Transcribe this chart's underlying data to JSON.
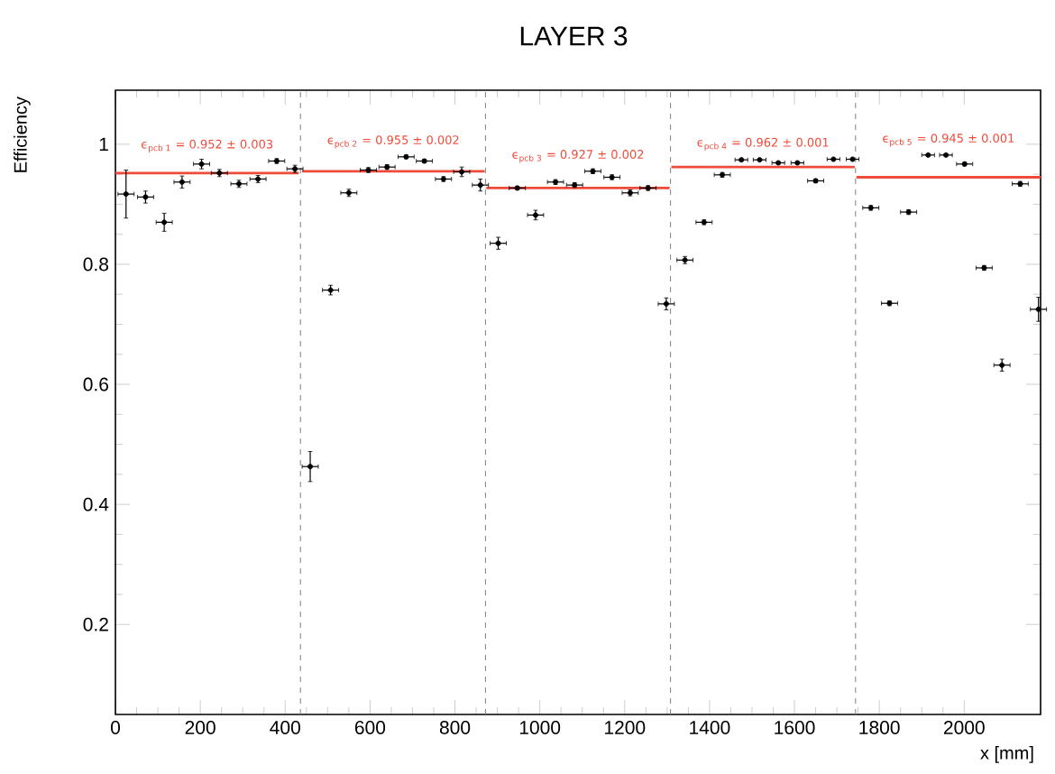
{
  "chart_data": {
    "type": "scatter",
    "title": "LAYER 3",
    "xlabel": "x [mm]",
    "ylabel": "Efficiency",
    "xlim": [
      0,
      2180
    ],
    "ylim": [
      0.05,
      1.09
    ],
    "xticks": [
      0,
      200,
      400,
      600,
      800,
      1000,
      1200,
      1400,
      1600,
      1800,
      2000
    ],
    "yticks": [
      0.2,
      0.4,
      0.6,
      0.8,
      {
        "value": 1,
        "label": "1"
      }
    ],
    "ref_lines": [
      {
        "axis": "x",
        "value": 436,
        "color": "#808080",
        "line_style": "dashed"
      },
      {
        "axis": "x",
        "value": 872,
        "color": "#808080",
        "line_style": "dashed"
      },
      {
        "axis": "x",
        "value": 1308,
        "color": "#808080",
        "line_style": "dashed"
      },
      {
        "axis": "x",
        "value": 1744,
        "color": "#808080",
        "line_style": "dashed"
      }
    ],
    "series": [
      {
        "color": "#000000",
        "marker": "circle",
        "x": [
          25,
          71,
          115,
          157,
          203,
          245,
          291,
          336,
          380,
          423,
          459,
          507,
          550,
          596,
          640,
          685,
          728,
          773,
          816,
          860,
          902,
          947,
          990,
          1037,
          1082,
          1125,
          1170,
          1213,
          1255,
          1298,
          1342,
          1387,
          1430,
          1475,
          1518,
          1562,
          1607,
          1650,
          1692,
          1737,
          1780,
          1824,
          1869,
          1915,
          1957,
          2001,
          2047,
          2089,
          2132,
          2175
        ],
        "values": [
          0.917,
          0.912,
          0.87,
          0.937,
          0.967,
          0.952,
          0.934,
          0.942,
          0.972,
          0.959,
          0.463,
          0.757,
          0.919,
          0.957,
          0.962,
          0.979,
          0.972,
          0.942,
          0.954,
          0.932,
          0.835,
          0.927,
          0.882,
          0.937,
          0.932,
          0.955,
          0.945,
          0.919,
          0.927,
          0.734,
          0.807,
          0.87,
          0.949,
          0.974,
          0.974,
          0.969,
          0.969,
          0.939,
          0.975,
          0.975,
          0.894,
          0.735,
          0.887,
          0.982,
          0.982,
          0.967,
          0.794,
          0.632,
          0.934,
          0.725
        ],
        "errors": [
          0.04,
          0.01,
          0.015,
          0.01,
          0.008,
          0.006,
          0.006,
          0.006,
          0.004,
          0.006,
          0.025,
          0.008,
          0.006,
          0.004,
          0.004,
          0.003,
          0.003,
          0.004,
          0.008,
          0.01,
          0.01,
          0.003,
          0.008,
          0.004,
          0.004,
          0.004,
          0.004,
          0.005,
          0.004,
          0.01,
          0.006,
          0.004,
          0.004,
          0.002,
          0.002,
          0.002,
          0.002,
          0.003,
          0.002,
          0.002,
          0.004,
          0.004,
          0.004,
          0.002,
          0.002,
          0.003,
          0.004,
          0.01,
          0.004,
          0.02
        ],
        "xerrors": [
          19,
          19,
          19,
          19,
          19,
          19,
          19,
          19,
          19,
          19,
          19,
          19,
          19,
          19,
          19,
          19,
          19,
          19,
          19,
          19,
          19,
          19,
          19,
          19,
          19,
          19,
          19,
          19,
          19,
          19,
          19,
          19,
          19,
          15,
          15,
          15,
          15,
          19,
          15,
          15,
          19,
          19,
          19,
          15,
          15,
          19,
          19,
          19,
          19,
          19
        ]
      },
      {
        "type": "line",
        "name": "ϵ$_{pcb 1}$ = 0.952 ± 0.003",
        "color": "#f04a3a",
        "marker": "none",
        "x": [
          0,
          432
        ],
        "values": [
          0.952,
          0.952
        ]
      },
      {
        "type": "line",
        "name": "ϵ$_{pcb 2}$ = 0.955 ± 0.002",
        "color": "#f04a3a",
        "marker": "none",
        "x": [
          440,
          870
        ],
        "values": [
          0.955,
          0.955
        ]
      },
      {
        "type": "line",
        "name": "ϵ$_{pcb 3}$ = 0.927 ± 0.002",
        "color": "#f04a3a",
        "marker": "none",
        "x": [
          874,
          1306
        ],
        "values": [
          0.927,
          0.927
        ]
      },
      {
        "type": "line",
        "name": "ϵ$_{pcb 4}$ = 0.962 ± 0.001",
        "color": "#f04a3a",
        "marker": "none",
        "x": [
          1310,
          1742
        ],
        "values": [
          0.962,
          0.962
        ]
      },
      {
        "type": "line",
        "name": "ϵ$_{pcb 5}$ = 0.945 ± 0.001",
        "color": "#f04a3a",
        "marker": "none",
        "x": [
          1746,
          2180
        ],
        "values": [
          0.945,
          0.945
        ]
      }
    ]
  }
}
